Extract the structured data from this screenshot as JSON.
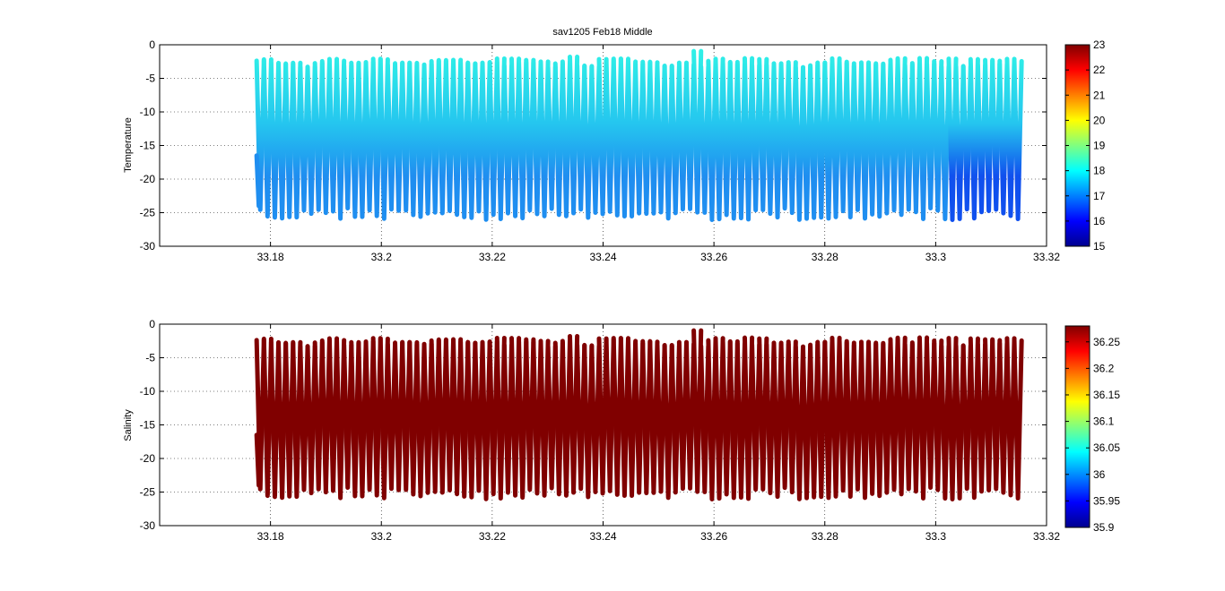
{
  "chart_data": [
    {
      "type": "scatter",
      "title": "sav1205 Feb18 Middle",
      "xlabel": "",
      "ylabel": "Temperature",
      "xlim": [
        33.16,
        33.32
      ],
      "ylim": [
        -30,
        0
      ],
      "xticks": [
        "33.18",
        "33.2",
        "33.22",
        "33.24",
        "33.26",
        "33.28",
        "33.3",
        "33.32"
      ],
      "yticks": [
        "0",
        "-5",
        "-10",
        "-15",
        "-20",
        "-25",
        "-30"
      ],
      "grid": true,
      "colorbar": {
        "colormap": "jet",
        "range": [
          15,
          23
        ],
        "ticks": [
          "23",
          "22",
          "21",
          "20",
          "19",
          "18",
          "17",
          "16",
          "15"
        ]
      },
      "data_extent": {
        "x": [
          33.1775,
          33.3155
        ],
        "y": [
          -26.5,
          -0.5
        ]
      },
      "profile_count": 105,
      "colors": {
        "near_surface": "#30f4e6",
        "deep": "#1f8ef0",
        "deep_east": "#1050ee"
      }
    },
    {
      "type": "scatter",
      "title": "",
      "xlabel": "",
      "ylabel": "Salinity",
      "xlim": [
        33.16,
        33.32
      ],
      "ylim": [
        -30,
        0
      ],
      "xticks": [
        "33.18",
        "33.2",
        "33.22",
        "33.24",
        "33.26",
        "33.28",
        "33.3",
        "33.32"
      ],
      "yticks": [
        "0",
        "-5",
        "-10",
        "-15",
        "-20",
        "-25",
        "-30"
      ],
      "grid": true,
      "colorbar": {
        "colormap": "jet",
        "range": [
          35.9,
          36.28
        ],
        "ticks": [
          "36.25",
          "36.2",
          "36.15",
          "36.1",
          "36.05",
          "36",
          "35.95",
          "35.9"
        ],
        "tick_values": [
          36.25,
          36.2,
          36.15,
          36.1,
          36.05,
          36,
          35.95,
          35.9
        ]
      },
      "data_extent": {
        "x": [
          33.1775,
          33.3155
        ],
        "y": [
          -26.5,
          -0.5
        ]
      },
      "profile_count": 105,
      "colors": {
        "all": "#800000"
      }
    }
  ]
}
